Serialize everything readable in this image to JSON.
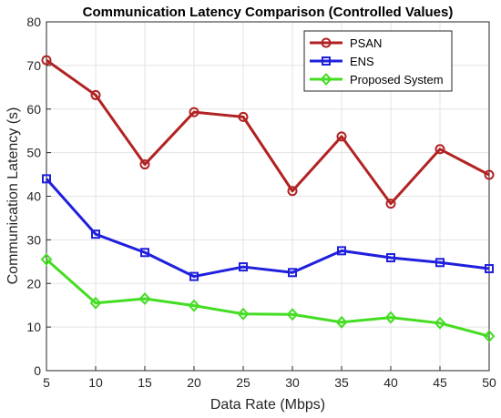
{
  "chart_data": {
    "type": "line",
    "title": "Communication Latency Comparison (Controlled Values)",
    "xlabel": "Data Rate (Mbps)",
    "ylabel": "Communication Latency (s)",
    "x": [
      5,
      10,
      15,
      20,
      25,
      30,
      35,
      40,
      45,
      50
    ],
    "xlim": [
      5,
      50
    ],
    "ylim": [
      0,
      80
    ],
    "xticks": [
      5,
      10,
      15,
      20,
      25,
      30,
      35,
      40,
      45,
      50
    ],
    "yticks": [
      0,
      10,
      20,
      30,
      40,
      50,
      60,
      70,
      80
    ],
    "grid": true,
    "legend_position": "top-right",
    "series": [
      {
        "name": "PSAN",
        "color": "#b22222",
        "marker": "circle",
        "values": [
          71.2,
          63.2,
          47.3,
          59.3,
          58.2,
          41.2,
          53.7,
          38.3,
          50.8,
          44.9
        ]
      },
      {
        "name": "ENS",
        "color": "#1f1fdd",
        "marker": "square",
        "values": [
          44.0,
          31.3,
          27.1,
          21.6,
          23.8,
          22.5,
          27.5,
          25.9,
          24.8,
          23.4
        ]
      },
      {
        "name": "Proposed System",
        "color": "#44dd22",
        "marker": "diamond",
        "values": [
          25.5,
          15.5,
          16.5,
          14.9,
          13.0,
          12.9,
          11.1,
          12.2,
          10.9,
          7.9
        ]
      }
    ]
  }
}
